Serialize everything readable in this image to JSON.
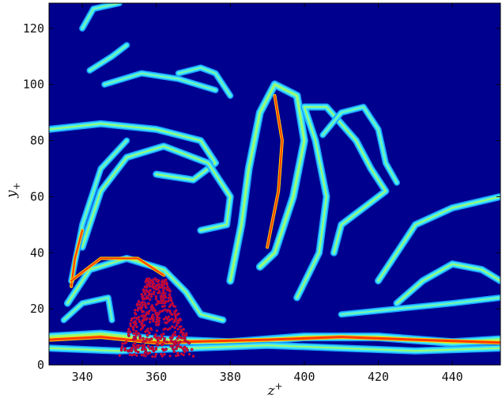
{
  "chart_data": {
    "type": "heatmap",
    "title": "",
    "xlabel": "z+",
    "ylabel": "y+",
    "xlim": [
      331,
      453
    ],
    "ylim": [
      0,
      129
    ],
    "x_ticks": [
      340,
      360,
      380,
      400,
      420,
      440
    ],
    "y_ticks": [
      0,
      20,
      40,
      60,
      80,
      100,
      120
    ],
    "x_tick_labels": [
      "340",
      "360",
      "380",
      "400",
      "420",
      "440"
    ],
    "y_tick_labels": [
      "0",
      "20",
      "40",
      "60",
      "80",
      "100",
      "120"
    ],
    "grid": false,
    "colormap": "jet",
    "colors": {
      "background": "#00008f",
      "low": "#1a9fff",
      "mid": "#3fe8ff",
      "high": "#b4ff4a",
      "peak": "#ff3c00",
      "particles": "#e8001c",
      "particle_outline": "#1b1bb0"
    },
    "particle_cluster": {
      "x_range": [
        351,
        370
      ],
      "y_range": [
        3,
        31
      ]
    }
  }
}
